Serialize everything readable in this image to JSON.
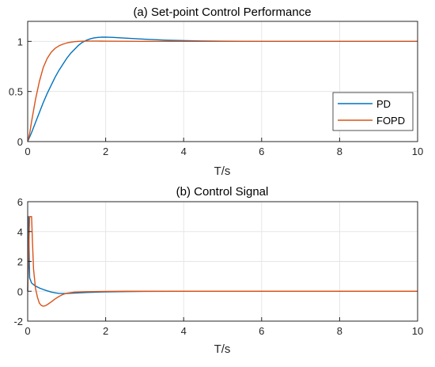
{
  "colors": {
    "pd": "#0072BD",
    "fopd": "#D95319",
    "grid": "#e6e6e6",
    "axes": "#262626"
  },
  "chart_data": [
    {
      "type": "line",
      "title": "(a) Set-point Control Performance",
      "xlabel": "T/s",
      "ylabel": "",
      "xlim": [
        0,
        10
      ],
      "ylim": [
        0,
        1.2
      ],
      "xticks": [
        0,
        2,
        4,
        6,
        8,
        10
      ],
      "xtick_labels": [
        "0",
        "2",
        "4",
        "6",
        "8",
        "10"
      ],
      "yticks": [
        0,
        0.5,
        1
      ],
      "ytick_labels": [
        "0",
        "0.5",
        "1"
      ],
      "grid": true,
      "legend": "bottom-right",
      "series": [
        {
          "name": "PD",
          "x": [
            0,
            0.1,
            0.2,
            0.3,
            0.4,
            0.5,
            0.6,
            0.7,
            0.8,
            0.9,
            1.0,
            1.1,
            1.2,
            1.3,
            1.4,
            1.5,
            1.6,
            1.7,
            1.8,
            1.9,
            2.0,
            2.2,
            2.5,
            3.0,
            3.5,
            4.0,
            4.5,
            5.0,
            6.0,
            7.0,
            8.0,
            9.0,
            10.0
          ],
          "y": [
            0,
            0.09,
            0.19,
            0.29,
            0.39,
            0.48,
            0.56,
            0.64,
            0.71,
            0.77,
            0.83,
            0.88,
            0.92,
            0.96,
            0.99,
            1.01,
            1.025,
            1.035,
            1.04,
            1.042,
            1.043,
            1.04,
            1.033,
            1.022,
            1.013,
            1.008,
            1.004,
            1.002,
            1.0,
            1.0,
            1.0,
            1.0,
            1.0
          ]
        },
        {
          "name": "FOPD",
          "x": [
            0,
            0.05,
            0.1,
            0.2,
            0.3,
            0.4,
            0.5,
            0.6,
            0.7,
            0.8,
            0.9,
            1.0,
            1.1,
            1.2,
            1.3,
            1.4,
            1.6,
            1.8,
            2.0,
            2.5,
            3.0,
            4.0,
            5.0,
            6.0,
            7.0,
            8.0,
            9.0,
            10.0
          ],
          "y": [
            0,
            0.08,
            0.2,
            0.42,
            0.6,
            0.74,
            0.83,
            0.89,
            0.93,
            0.955,
            0.972,
            0.984,
            0.992,
            0.997,
            1.0,
            1.002,
            1.003,
            1.003,
            1.002,
            1.001,
            1.0,
            1.0,
            1.0,
            1.0,
            1.0,
            1.0,
            1.0,
            1.0
          ]
        }
      ]
    },
    {
      "type": "line",
      "title": "(b) Control Signal",
      "xlabel": "T/s",
      "ylabel": "",
      "xlim": [
        0,
        10
      ],
      "ylim": [
        -2,
        6
      ],
      "xticks": [
        0,
        2,
        4,
        6,
        8,
        10
      ],
      "xtick_labels": [
        "0",
        "2",
        "4",
        "6",
        "8",
        "10"
      ],
      "yticks": [
        -2,
        0,
        2,
        4,
        6
      ],
      "ytick_labels": [
        "-2",
        "0",
        "2",
        "4",
        "6"
      ],
      "grid": true,
      "series": [
        {
          "name": "PD",
          "x": [
            0,
            0.02,
            0.05,
            0.1,
            0.15,
            0.2,
            0.3,
            0.4,
            0.5,
            0.6,
            0.7,
            0.8,
            0.9,
            1.0,
            1.2,
            1.5,
            2.0,
            2.5,
            3.0,
            4.0,
            5.0,
            6.0,
            8.0,
            10.0
          ],
          "y": [
            0,
            5.0,
            0.9,
            0.55,
            0.45,
            0.35,
            0.22,
            0.12,
            0.03,
            -0.05,
            -0.1,
            -0.14,
            -0.15,
            -0.15,
            -0.12,
            -0.08,
            -0.04,
            -0.02,
            -0.01,
            0,
            0,
            0,
            0,
            0
          ]
        },
        {
          "name": "FOPD",
          "x": [
            0,
            0.05,
            0.1,
            0.12,
            0.15,
            0.2,
            0.25,
            0.3,
            0.35,
            0.4,
            0.45,
            0.5,
            0.6,
            0.7,
            0.8,
            0.9,
            1.0,
            1.2,
            1.5,
            2.0,
            2.5,
            3.0,
            4.0,
            5.0,
            6.0,
            8.0,
            10.0
          ],
          "y": [
            0,
            5.0,
            5.0,
            3.5,
            1.5,
            0.2,
            -0.4,
            -0.8,
            -0.95,
            -1.0,
            -0.97,
            -0.9,
            -0.72,
            -0.52,
            -0.35,
            -0.22,
            -0.13,
            -0.06,
            -0.03,
            -0.01,
            0,
            0,
            0,
            0,
            0,
            0,
            0
          ]
        }
      ]
    }
  ]
}
